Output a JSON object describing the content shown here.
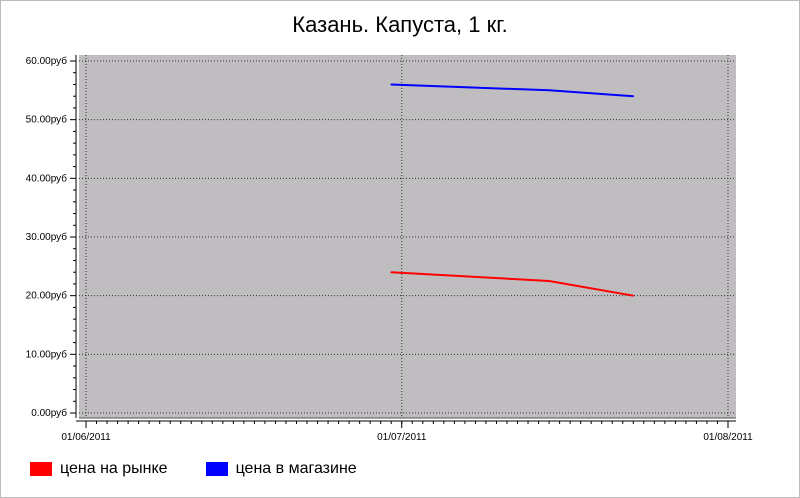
{
  "chart_data": {
    "type": "line",
    "title": "Казань. Капуста, 1 кг.",
    "xlabel": "",
    "ylabel": "",
    "x_ticks": [
      "01/06/2011",
      "01/07/2011",
      "01/08/2011"
    ],
    "y_ticks": [
      "0.00руб",
      "10.00руб",
      "20.00руб",
      "30.00руб",
      "40.00руб",
      "50.00руб",
      "60.00руб"
    ],
    "xlim": [
      "2011-06-01",
      "2011-08-01"
    ],
    "ylim": [
      0,
      60
    ],
    "grid": true,
    "legend_position": "bottom-left",
    "background_color": "#c0bdc0",
    "series": [
      {
        "name": "цена на рынке",
        "color": "#ff0000",
        "x": [
          "2011-06-30",
          "2011-07-15",
          "2011-07-23"
        ],
        "values": [
          24.0,
          22.5,
          20.0
        ]
      },
      {
        "name": "цена в магазине",
        "color": "#0000ff",
        "x": [
          "2011-06-30",
          "2011-07-15",
          "2011-07-23"
        ],
        "values": [
          56.0,
          55.0,
          54.0
        ]
      }
    ]
  }
}
